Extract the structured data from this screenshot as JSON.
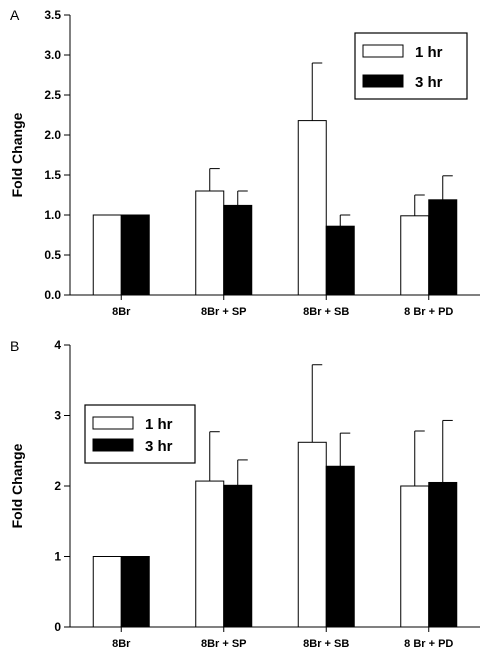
{
  "chart_data": [
    {
      "panel_label": "A",
      "type": "bar",
      "ylabel": "Fold Change",
      "ylim": [
        0,
        3.5
      ],
      "yticks": [
        "0.0",
        "0.5",
        "1.0",
        "1.5",
        "2.0",
        "2.5",
        "3.0",
        "3.5"
      ],
      "categories": [
        "8Br",
        "8Br + SP",
        "8Br + SB",
        "8 Br + PD"
      ],
      "series": [
        {
          "name": "1 hr",
          "color": "#ffffff",
          "values": [
            1.0,
            1.3,
            2.18,
            0.99
          ],
          "errors": [
            0,
            0.28,
            0.72,
            0.26
          ]
        },
        {
          "name": "3 hr",
          "color": "#000000",
          "values": [
            1.0,
            1.12,
            0.86,
            1.19
          ],
          "errors": [
            0,
            0.18,
            0.14,
            0.3
          ]
        }
      ],
      "legend": "top-right"
    },
    {
      "panel_label": "B",
      "type": "bar",
      "ylabel": "Fold Change",
      "ylim": [
        0,
        4
      ],
      "yticks": [
        "0",
        "1",
        "2",
        "3",
        "4"
      ],
      "categories": [
        "8Br",
        "8Br + SP",
        "8Br + SB",
        "8 Br + PD"
      ],
      "series": [
        {
          "name": "1 hr",
          "color": "#ffffff",
          "values": [
            1.0,
            2.07,
            2.62,
            2.0
          ],
          "errors": [
            0,
            0.7,
            1.1,
            0.78
          ]
        },
        {
          "name": "3 hr",
          "color": "#000000",
          "values": [
            1.0,
            2.01,
            2.28,
            2.05
          ],
          "errors": [
            0,
            0.36,
            0.47,
            0.88
          ]
        }
      ],
      "legend": "top-left"
    }
  ]
}
